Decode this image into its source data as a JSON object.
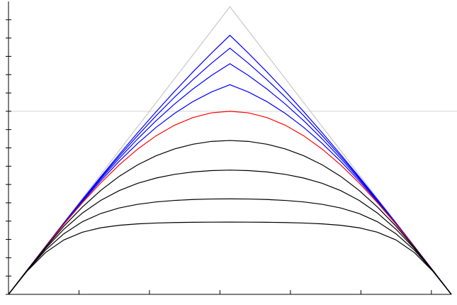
{
  "chart_data": {
    "type": "line",
    "x": [
      0,
      0.2618,
      0.5236,
      0.7854,
      1.0472,
      1.309,
      1.5708,
      1.8326,
      2.0944,
      2.3562,
      2.618,
      2.8798,
      3.1416,
      3.4034,
      3.6652,
      3.927,
      4.1888,
      4.4506,
      4.7124,
      4.9742,
      5.236,
      5.4978,
      5.7596,
      6.0214,
      6.2832
    ],
    "xlim": [
      0,
      6.2832
    ],
    "xticks": [
      0,
      1,
      2,
      3,
      4,
      5,
      6
    ],
    "ylim": [
      0,
      3.2
    ],
    "yticks": [
      0,
      0.2,
      0.4,
      0.6,
      0.8,
      1,
      1.2,
      1.4,
      1.6,
      1.8,
      2,
      2.2,
      2.4,
      2.6,
      2.8,
      3
    ],
    "hline": {
      "value": 2,
      "color": "#d4d4d4"
    },
    "series": [
      {
        "color": "#c8c8c8",
        "values": [
          0,
          0.2618,
          0.5236,
          0.7854,
          1.0472,
          1.309,
          1.5708,
          1.8326,
          2.0944,
          2.3562,
          2.618,
          2.8798,
          3.1416,
          2.8798,
          2.618,
          2.3562,
          2.0944,
          1.8326,
          1.5708,
          1.309,
          1.0472,
          0.7854,
          0.5236,
          0.2618,
          0
        ]
      },
      {
        "color": "#0000ff",
        "values": [
          0,
          0.2616,
          0.522,
          0.7799,
          1.0343,
          1.284,
          1.528,
          1.7655,
          1.9955,
          2.2174,
          2.4307,
          2.6349,
          2.8299,
          2.6349,
          2.4307,
          2.2174,
          1.9955,
          1.7655,
          1.528,
          1.284,
          1.0343,
          0.7799,
          0.522,
          0.2616,
          0
        ]
      },
      {
        "color": "#0000ff",
        "values": [
          0,
          0.2615,
          0.5212,
          0.7775,
          1.0285,
          1.2728,
          1.5088,
          1.7352,
          1.9509,
          2.1549,
          2.3463,
          2.5246,
          2.6895,
          2.5246,
          2.3463,
          2.1549,
          1.9509,
          1.7352,
          1.5088,
          1.2728,
          1.0285,
          0.7775,
          0.5212,
          0.2615,
          0
        ]
      },
      {
        "color": "#0000ff",
        "values": [
          0,
          0.2614,
          0.5203,
          0.7745,
          1.0215,
          1.2591,
          1.4855,
          1.6986,
          1.8969,
          2.0791,
          2.2441,
          2.391,
          2.5194,
          2.391,
          2.2441,
          2.0791,
          1.8969,
          1.6986,
          1.4855,
          1.2591,
          1.0215,
          0.7745,
          0.5203,
          0.2614,
          0
        ]
      },
      {
        "color": "#0000ff",
        "values": [
          0,
          0.2613,
          0.5191,
          0.7705,
          1.012,
          1.2407,
          1.454,
          1.6492,
          1.8241,
          1.9769,
          2.1062,
          2.2107,
          2.29,
          2.2107,
          2.1062,
          1.9769,
          1.8241,
          1.6492,
          1.454,
          1.2407,
          1.012,
          0.7705,
          0.5191,
          0.2613,
          0
        ]
      },
      {
        "color": "#ff0000",
        "values": [
          0,
          0.2611,
          0.5176,
          0.7654,
          1,
          1.2175,
          1.4142,
          1.5867,
          1.7321,
          1.8478,
          1.9319,
          1.9829,
          2,
          1.9829,
          1.9319,
          1.8478,
          1.7321,
          1.5867,
          1.4142,
          1.2175,
          1,
          0.7654,
          0.5176,
          0.2611,
          0
        ]
      },
      {
        "color": "#000000",
        "values": [
          0,
          0.2603,
          0.5109,
          0.7441,
          0.9534,
          1.1357,
          1.2896,
          1.4152,
          1.5145,
          1.5889,
          1.6403,
          1.671,
          1.6809,
          1.671,
          1.6403,
          1.5889,
          1.5145,
          1.4152,
          1.2896,
          1.1357,
          0.9534,
          0.7441,
          0.5109,
          0.2603,
          0
        ]
      },
      {
        "color": "#000000",
        "values": [
          0,
          0.2589,
          0.5003,
          0.7118,
          0.8874,
          1.0266,
          1.1334,
          1.213,
          1.2707,
          1.311,
          1.3374,
          1.3523,
          1.3573,
          1.3523,
          1.3374,
          1.311,
          1.2707,
          1.213,
          1.1334,
          1.0266,
          0.8874,
          0.7118,
          0.5003,
          0.2589,
          0
        ]
      },
      {
        "color": "#000000",
        "values": [
          0,
          0.2563,
          0.4825,
          0.6619,
          0.7928,
          0.8832,
          0.9438,
          0.9836,
          1.0096,
          1.0261,
          1.0363,
          1.0417,
          1.0434,
          1.0417,
          1.0363,
          1.0261,
          1.0096,
          0.9836,
          0.9438,
          0.8832,
          0.7928,
          0.6619,
          0.4825,
          0.2563,
          0
        ]
      },
      {
        "color": "#000000",
        "values": [
          0,
          0.2522,
          0.4557,
          0.5943,
          0.6786,
          0.7273,
          0.7547,
          0.7702,
          0.7792,
          0.7844,
          0.7873,
          0.7888,
          0.7893,
          0.7888,
          0.7873,
          0.7844,
          0.7792,
          0.7702,
          0.7547,
          0.7273,
          0.6786,
          0.5943,
          0.4557,
          0.2522,
          0
        ]
      }
    ]
  }
}
